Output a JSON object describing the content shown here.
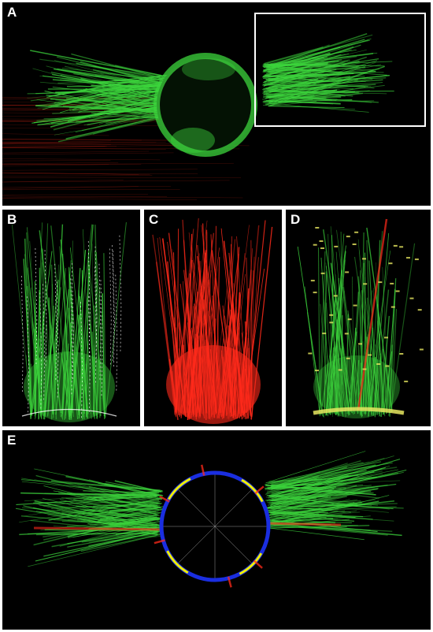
{
  "figure": {
    "panels": [
      {
        "id": "a",
        "label": "A"
      },
      {
        "id": "b",
        "label": "B"
      },
      {
        "id": "c",
        "label": "C"
      },
      {
        "id": "d",
        "label": "D"
      },
      {
        "id": "e",
        "label": "E"
      }
    ]
  },
  "colors": {
    "background": "#000000",
    "fiber_green": "#3cd43c",
    "trace_red": "#ff2a1a",
    "contour_white": "#ffffff",
    "marker_yellow": "#e8e860",
    "ring_blue": "#1a2ee0",
    "ring_yellow": "#f0f000",
    "inset_box": "#ffffff"
  }
}
